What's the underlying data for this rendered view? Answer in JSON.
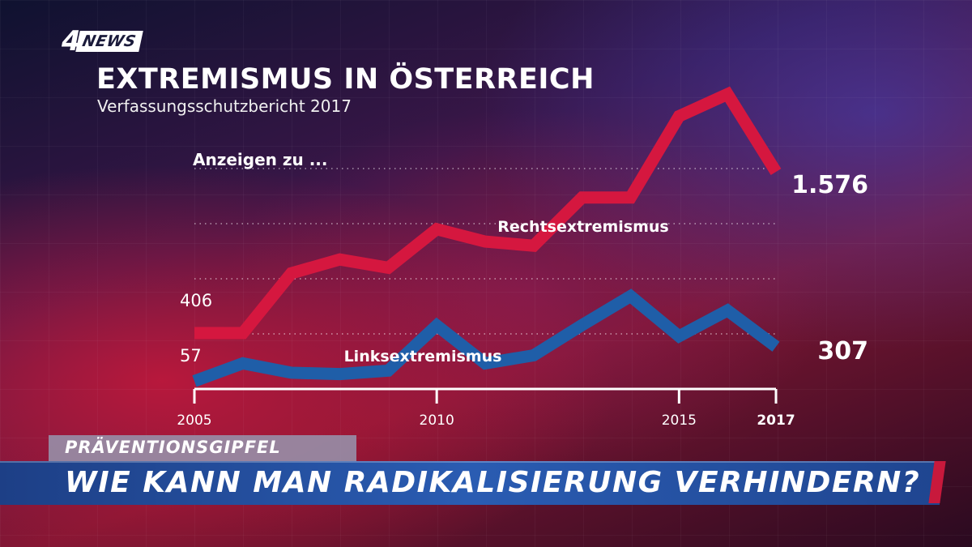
{
  "logo": {
    "number": "4",
    "text": "NEWS"
  },
  "title": "EXTREMISMUS IN ÖSTERREICH",
  "subtitle": "Verfassungsschutzbericht 2017",
  "lower_third": {
    "kicker": "PRÄVENTIONSGIPFEL",
    "headline": "WIE KANN MAN RADIKALISIERUNG VERHINDERN?"
  },
  "colors": {
    "rechts": "#d5173f",
    "links": "#1f5ea8"
  },
  "chart_data": {
    "type": "line",
    "title": "EXTREMISMUS IN ÖSTERREICH",
    "subtitle": "Verfassungsschutzbericht 2017",
    "annotation": "Anzeigen zu ...",
    "x": [
      2005,
      2006,
      2007,
      2008,
      2009,
      2010,
      2011,
      2012,
      2013,
      2014,
      2015,
      2016,
      2017
    ],
    "xlim": [
      2005,
      2017
    ],
    "x_ticks": [
      {
        "value": 2005,
        "label": "2005",
        "bold": false
      },
      {
        "value": 2010,
        "label": "2010",
        "bold": false
      },
      {
        "value": 2015,
        "label": "2015",
        "bold": false
      },
      {
        "value": 2017,
        "label": "2017",
        "bold": true
      }
    ],
    "ylim": [
      0,
      2000
    ],
    "y_gridlines": [
      400,
      800,
      1200,
      1600
    ],
    "grid": true,
    "series": [
      {
        "name": "Rechtsextremismus",
        "values": [
          406,
          406,
          840,
          940,
          880,
          1160,
          1070,
          1040,
          1390,
          1390,
          1980,
          2140,
          1576
        ],
        "start_label": "406",
        "end_label": "1.576"
      },
      {
        "name": "Linksextremismus",
        "values": [
          57,
          186,
          118,
          108,
          133,
          461,
          186,
          244,
          464,
          674,
          383,
          570,
          307
        ],
        "start_label": "57",
        "end_label": "307"
      }
    ]
  }
}
